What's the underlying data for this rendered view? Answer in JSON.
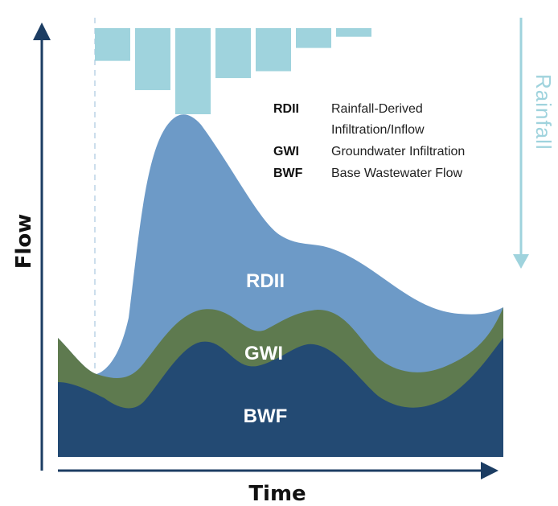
{
  "axes": {
    "y_label": "Flow",
    "x_label": "Time",
    "rain_label": "Rainfall"
  },
  "regions": {
    "rdii": "RDII",
    "gwi": "GWI",
    "bwf": "BWF"
  },
  "legend": [
    {
      "abbr": "RDII",
      "desc1": "Rainfall-Derived",
      "desc2": "Infiltration/Inflow"
    },
    {
      "abbr": "GWI",
      "desc1": "Groundwater Infiltration",
      "desc2": ""
    },
    {
      "abbr": "BWF",
      "desc1": "Base Wastewater Flow",
      "desc2": ""
    }
  ],
  "colors": {
    "rdii": "#6d9ac7",
    "gwi": "#5e7a4f",
    "bwf": "#234a73",
    "rain": "#9fd3dd",
    "axis": "#1c3d63"
  },
  "rainfall_bars": [
    0.38,
    0.72,
    1.0,
    0.58,
    0.5,
    0.23,
    0.1
  ]
}
